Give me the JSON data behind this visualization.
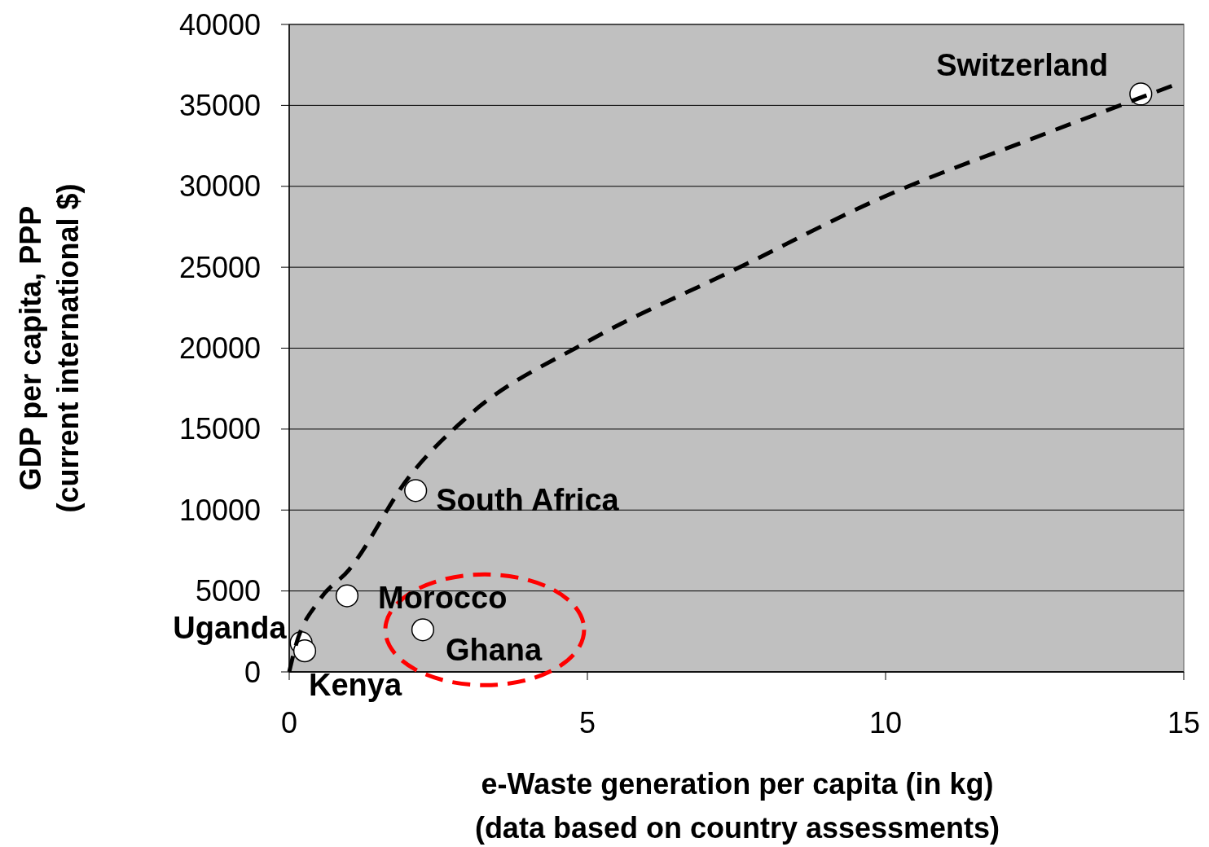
{
  "chart_data": {
    "type": "scatter",
    "xlabel": "e-Waste generation per capita (in kg)\n(data based on country assessments)",
    "ylabel": "GDP per capita, PPP\n(current international $)",
    "xlim": [
      0,
      15
    ],
    "xticks": [
      0,
      5,
      10,
      15
    ],
    "ylim": [
      0,
      40000
    ],
    "yticks": [
      0,
      5000,
      10000,
      15000,
      20000,
      25000,
      30000,
      35000,
      40000
    ],
    "grid": "y",
    "marker": "circle",
    "series": [
      {
        "type": "scatter",
        "color": "#ffffff",
        "x": [
          14.28,
          2.12,
          0.97,
          2.24,
          0.2,
          0.26
        ],
        "values": [
          35700,
          11200,
          4700,
          2600,
          1800,
          1300
        ]
      },
      {
        "type": "line",
        "color": "#000000",
        "line_style": "dashed",
        "marker": "none",
        "x": [
          0,
          0.1,
          0.5,
          1,
          2,
          3,
          5,
          7.5,
          10,
          12.5,
          14.8
        ],
        "values": [
          0,
          1500,
          4400,
          6300,
          12000,
          15800,
          20400,
          24900,
          29400,
          33000,
          36200
        ]
      }
    ],
    "annotations": [
      {
        "text": "Switzerland",
        "x": 14.28,
        "y": 35700
      },
      {
        "text": "South Africa",
        "x": 2.12,
        "y": 11200
      },
      {
        "text": "Morocco",
        "x": 0.97,
        "y": 4700
      },
      {
        "text": "Ghana",
        "x": 2.24,
        "y": 2600
      },
      {
        "text": "Uganda",
        "x": 0.2,
        "y": 1800
      },
      {
        "text": "Kenya",
        "x": 0.26,
        "y": 1300
      }
    ]
  }
}
